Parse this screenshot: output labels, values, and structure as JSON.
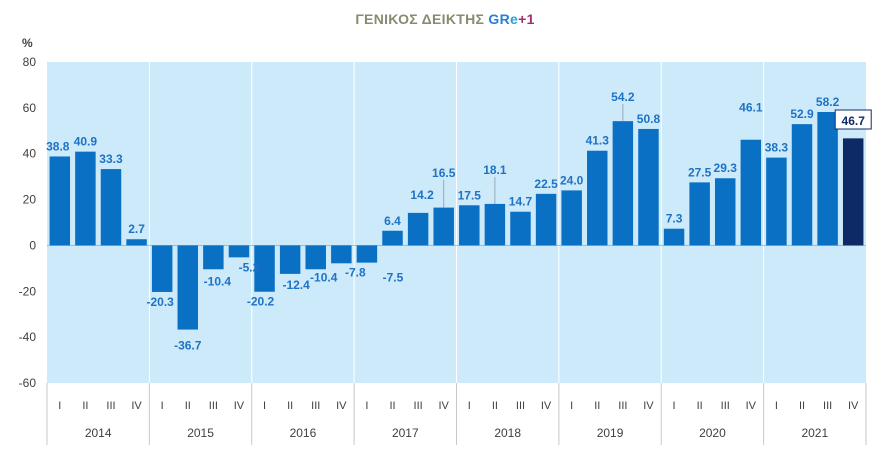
{
  "title": {
    "main": "ΓΕΝΙΚΟΣ ΔΕΙΚΤΗΣ ",
    "gr": "GR",
    "e": "e",
    "plus": "+1"
  },
  "colors": {
    "plot_background": "#cdeafb",
    "bar": "#0a70c4",
    "bar_highlight": "#0d2a66",
    "label": "#1f72c4",
    "title_main": "#8a8a6e",
    "title_gr": "#2a7fd4",
    "title_plus": "#a0306e"
  },
  "chart_data": {
    "type": "bar",
    "ylabel": "%",
    "ylim": [
      -60,
      80
    ],
    "yticks": [
      -60,
      -40,
      -20,
      0,
      20,
      40,
      60,
      80
    ],
    "grid": "vertical separators between years",
    "years": [
      "2014",
      "2015",
      "2016",
      "2017",
      "2018",
      "2019",
      "2020",
      "2021"
    ],
    "quarters": [
      "I",
      "II",
      "III",
      "IV"
    ],
    "values": [
      38.8,
      40.9,
      33.3,
      2.7,
      -20.3,
      -36.7,
      -10.4,
      -5.2,
      -20.2,
      -12.4,
      -10.4,
      -7.8,
      -7.5,
      6.4,
      14.2,
      16.5,
      17.5,
      18.1,
      14.7,
      22.5,
      24.0,
      41.3,
      54.2,
      50.8,
      7.3,
      27.5,
      29.3,
      46.1,
      38.3,
      52.9,
      58.2,
      46.7
    ],
    "labels": [
      "38.8",
      "40.9",
      "33.3",
      "2.7",
      "-20.3",
      "-36.7",
      "-10.4",
      "-5.2",
      "-20.2",
      "-12.4",
      "-10.4",
      "-7.8",
      "-7.5",
      "6.4",
      "14.2",
      "16.5",
      "17.5",
      "18.1",
      "14.7",
      "22.5",
      "24.0",
      "41.3",
      "54.2",
      "50.8",
      "7.3",
      "27.5",
      "29.3",
      "46.1",
      "38.3",
      "52.9",
      "58.2",
      "46.7"
    ],
    "highlight_index": 31
  }
}
